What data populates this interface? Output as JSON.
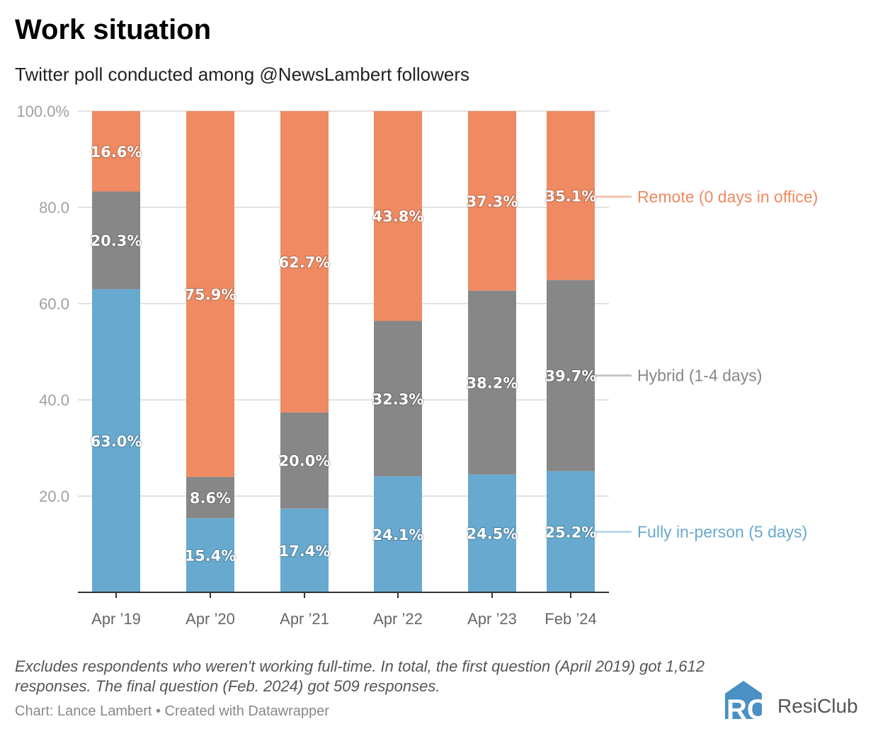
{
  "title": "Work situation",
  "subtitle": "Twitter poll conducted among @NewsLambert followers",
  "notes": "Excludes respondents who weren't working full-time. In total, the first question (April 2019) got 1,612 responses. The final question (Feb. 2024) got 509 responses.",
  "credit": "Chart: Lance Lambert • Created with Datawrapper",
  "logo": "ResiClub",
  "chart_data": {
    "type": "bar",
    "stacked": true,
    "categories": [
      "Apr ’19",
      "Apr ’20",
      "Apr ’21",
      "Apr ’22",
      "Apr ’23",
      "Feb ’24"
    ],
    "series": [
      {
        "name": "Fully in-person (5 days)",
        "color": "#67a9cf",
        "values": [
          63.0,
          15.4,
          17.4,
          24.1,
          24.5,
          25.2
        ],
        "labels": [
          "63.0%",
          "15.4%",
          "17.4%",
          "24.1%",
          "24.5%",
          "25.2%"
        ]
      },
      {
        "name": "Hybrid (1-4 days)",
        "color": "#878787",
        "values": [
          20.3,
          8.6,
          20.0,
          32.3,
          38.2,
          39.7
        ],
        "labels": [
          "20.3%",
          "8.6%",
          "20.0%",
          "32.3%",
          "38.2%",
          "39.7%"
        ]
      },
      {
        "name": "Remote (0 days in office)",
        "color": "#ef8a62",
        "values": [
          16.6,
          75.9,
          62.7,
          43.8,
          37.3,
          35.1
        ],
        "labels": [
          "16.6%",
          "75.9%",
          "62.7%",
          "43.8%",
          "37.3%",
          "35.1%"
        ]
      }
    ],
    "yticks": [
      20,
      40,
      60,
      80,
      100
    ],
    "ytick_labels": [
      "20.0",
      "40.0",
      "60.0",
      "80.0",
      "100.0%"
    ],
    "ylim": [
      0,
      100
    ],
    "grid": true,
    "legend": "direct labels right"
  }
}
